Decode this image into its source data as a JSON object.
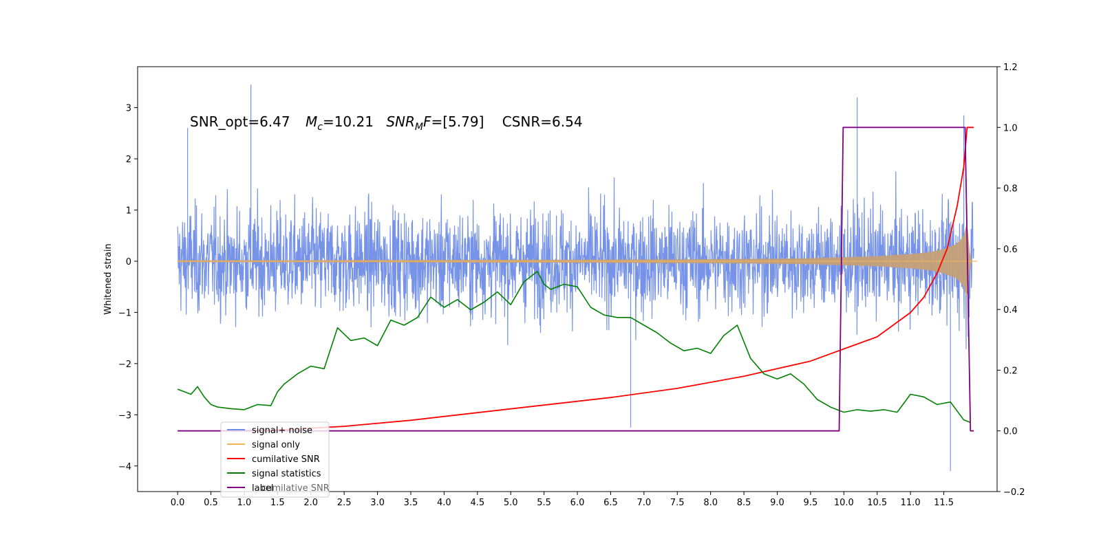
{
  "chart_data": {
    "type": "line",
    "title": "",
    "annotation": {
      "snr_opt": "SNR_opt=6.47",
      "mc_symbol": "M",
      "mc_sub": "c",
      "mc_value": "=10.21",
      "snr_mf_symbol": "SNR",
      "snr_mf_sub": "M",
      "snr_mf_f": "F",
      "snr_mf_value": "=[5.79]",
      "csnr": "CSNR=6.54"
    },
    "xlabel": "",
    "ylabel": "Whitened strain",
    "xlim": [
      -0.6,
      12.3
    ],
    "ylim_left": [
      -4.5,
      3.8
    ],
    "ylim_right": [
      -0.2,
      1.2
    ],
    "x_ticks": [
      "0.0",
      "0.5",
      "1.0",
      "1.5",
      "2.0",
      "2.5",
      "3.0",
      "3.5",
      "4.0",
      "4.5",
      "5.0",
      "5.5",
      "6.0",
      "6.5",
      "7.0",
      "7.5",
      "8.0",
      "8.5",
      "9.0",
      "9.5",
      "10.0",
      "10.5",
      "11.0",
      "11.5"
    ],
    "y_ticks_left": [
      "3",
      "2",
      "1",
      "0",
      "−1",
      "−2",
      "−3",
      "−4"
    ],
    "y_ticks_right": [
      "1.2",
      "1.0",
      "0.8",
      "0.6",
      "0.4",
      "0.2",
      "0.0",
      "−0.2"
    ],
    "legend_position": "lower-left",
    "series": [
      {
        "name": "signal+ noise",
        "axis": "left",
        "color": "#6f8de6",
        "x_range": [
          0.0,
          11.95
        ],
        "envelope_y": [
          -1.8,
          1.8
        ],
        "peaks": [
          [
            1.1,
            3.45
          ],
          [
            10.2,
            3.2
          ],
          [
            11.8,
            2.85
          ],
          [
            11.6,
            -4.1
          ],
          [
            6.8,
            -3.25
          ],
          [
            0.15,
            2.6
          ]
        ]
      },
      {
        "name": "signal only",
        "axis": "left",
        "color": "#f5b556",
        "x": [
          0,
          2,
          4,
          6,
          8,
          9,
          9.5,
          10,
          10.5,
          11,
          11.3,
          11.5,
          11.7,
          11.8,
          11.85,
          11.9,
          11.95
        ],
        "amplitude": [
          0.02,
          0.02,
          0.025,
          0.03,
          0.04,
          0.05,
          0.06,
          0.08,
          0.1,
          0.14,
          0.18,
          0.24,
          0.34,
          0.5,
          0.78,
          0.02,
          0.0
        ]
      },
      {
        "name": "cumilative SNR",
        "axis": "right",
        "color": "#ff0000",
        "x": [
          0.8,
          1.5,
          2.5,
          3.5,
          4.5,
          5.5,
          6.5,
          7.5,
          8.5,
          9.5,
          10.0,
          10.5,
          11.0,
          11.2,
          11.4,
          11.55,
          11.7,
          11.8,
          11.85,
          11.95
        ],
        "values": [
          0.0,
          0.003,
          0.015,
          0.035,
          0.06,
          0.085,
          0.11,
          0.14,
          0.18,
          0.23,
          0.27,
          0.31,
          0.39,
          0.44,
          0.52,
          0.6,
          0.74,
          0.87,
          1.0,
          1.0
        ]
      },
      {
        "name": "signal statistics",
        "axis": "left",
        "color": "#008000",
        "x": [
          0.0,
          0.1,
          0.2,
          0.3,
          0.4,
          0.5,
          0.6,
          0.8,
          1.0,
          1.2,
          1.4,
          1.5,
          1.6,
          1.8,
          2.0,
          2.2,
          2.4,
          2.6,
          2.8,
          3.0,
          3.2,
          3.4,
          3.6,
          3.8,
          4.0,
          4.2,
          4.4,
          4.6,
          4.8,
          5.0,
          5.2,
          5.4,
          5.5,
          5.6,
          5.8,
          6.0,
          6.2,
          6.4,
          6.6,
          6.8,
          7.0,
          7.2,
          7.4,
          7.6,
          7.8,
          8.0,
          8.2,
          8.4,
          8.6,
          8.8,
          9.0,
          9.2,
          9.4,
          9.6,
          9.8,
          10.0,
          10.2,
          10.4,
          10.6,
          10.8,
          11.0,
          11.2,
          11.4,
          11.6,
          11.8,
          11.9
        ],
        "values": [
          -2.5,
          -2.55,
          -2.6,
          -2.45,
          -2.65,
          -2.8,
          -2.85,
          -2.88,
          -2.9,
          -2.8,
          -2.82,
          -2.55,
          -2.4,
          -2.2,
          -2.05,
          -2.1,
          -1.3,
          -1.55,
          -1.5,
          -1.65,
          -1.15,
          -1.25,
          -1.1,
          -0.7,
          -0.9,
          -0.75,
          -0.95,
          -0.8,
          -0.6,
          -0.85,
          -0.4,
          -0.2,
          -0.45,
          -0.55,
          -0.45,
          -0.5,
          -0.9,
          -1.05,
          -1.1,
          -1.1,
          -1.25,
          -1.4,
          -1.6,
          -1.75,
          -1.7,
          -1.8,
          -1.45,
          -1.25,
          -1.9,
          -2.2,
          -2.3,
          -2.2,
          -2.4,
          -2.7,
          -2.85,
          -2.95,
          -2.9,
          -2.93,
          -2.9,
          -2.95,
          -2.6,
          -2.65,
          -2.8,
          -2.75,
          -3.1,
          -3.15
        ]
      },
      {
        "name": "label",
        "axis": "right",
        "color": "#800080",
        "x": [
          0.0,
          9.93,
          9.99,
          11.82,
          11.9,
          11.95
        ],
        "values": [
          0.0,
          0.0,
          1.0,
          1.0,
          0.0,
          0.0
        ]
      }
    ],
    "legend_overlap_text": "cumilative SNR"
  }
}
